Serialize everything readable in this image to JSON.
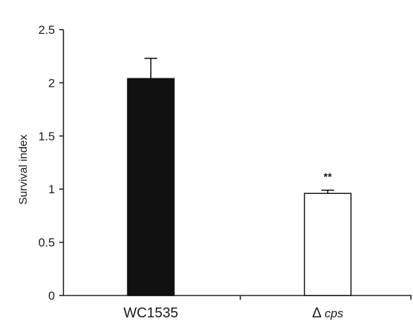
{
  "chart_data": {
    "type": "bar",
    "categories": [
      "WC1535",
      "Δ cps"
    ],
    "category_parts": [
      {
        "main": "WC1535",
        "italic": ""
      },
      {
        "main": "Δ ",
        "italic": "cps"
      }
    ],
    "values": [
      2.04,
      0.96
    ],
    "errors": [
      0.19,
      0.03
    ],
    "fills": [
      "#111111",
      "#ffffff"
    ],
    "annotations": [
      "",
      "**"
    ],
    "ylabel": "Survival index",
    "xlabel": "",
    "ylim": [
      0,
      2.5
    ],
    "yticks": [
      0,
      0.5,
      1,
      1.5,
      2,
      2.5
    ],
    "ytick_labels": [
      "0",
      "0.5",
      "1",
      "1.5",
      "2",
      "2.5"
    ],
    "grid": false,
    "legend": "none"
  }
}
